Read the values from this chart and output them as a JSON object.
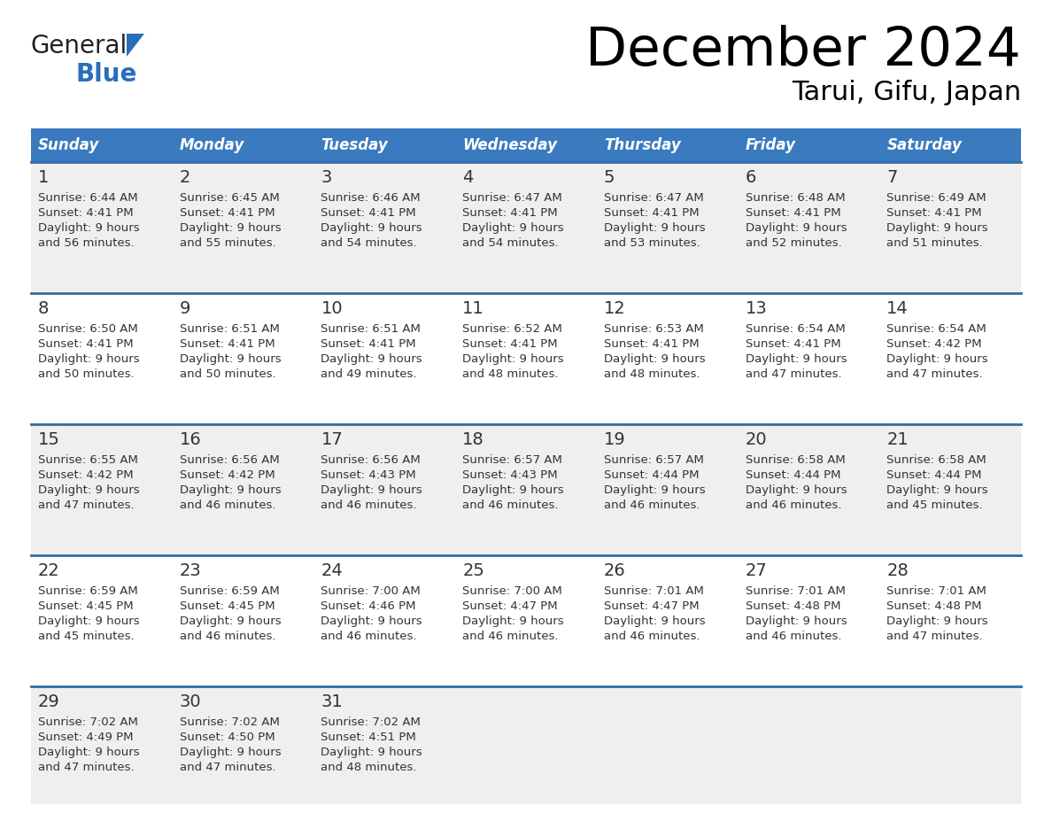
{
  "title": "December 2024",
  "subtitle": "Tarui, Gifu, Japan",
  "header_bg_color": "#3a7abf",
  "header_text_color": "#ffffff",
  "cell_bg_color_odd": "#efefef",
  "cell_bg_color_even": "#ffffff",
  "row_line_color": "#2e6da4",
  "text_color": "#333333",
  "days_of_week": [
    "Sunday",
    "Monday",
    "Tuesday",
    "Wednesday",
    "Thursday",
    "Friday",
    "Saturday"
  ],
  "calendar_data": [
    [
      {
        "day": "1",
        "sunrise": "6:44 AM",
        "sunset": "4:41 PM",
        "daylight_h": "Daylight: 9 hours",
        "daylight_m": "and 56 minutes."
      },
      {
        "day": "2",
        "sunrise": "6:45 AM",
        "sunset": "4:41 PM",
        "daylight_h": "Daylight: 9 hours",
        "daylight_m": "and 55 minutes."
      },
      {
        "day": "3",
        "sunrise": "6:46 AM",
        "sunset": "4:41 PM",
        "daylight_h": "Daylight: 9 hours",
        "daylight_m": "and 54 minutes."
      },
      {
        "day": "4",
        "sunrise": "6:47 AM",
        "sunset": "4:41 PM",
        "daylight_h": "Daylight: 9 hours",
        "daylight_m": "and 54 minutes."
      },
      {
        "day": "5",
        "sunrise": "6:47 AM",
        "sunset": "4:41 PM",
        "daylight_h": "Daylight: 9 hours",
        "daylight_m": "and 53 minutes."
      },
      {
        "day": "6",
        "sunrise": "6:48 AM",
        "sunset": "4:41 PM",
        "daylight_h": "Daylight: 9 hours",
        "daylight_m": "and 52 minutes."
      },
      {
        "day": "7",
        "sunrise": "6:49 AM",
        "sunset": "4:41 PM",
        "daylight_h": "Daylight: 9 hours",
        "daylight_m": "and 51 minutes."
      }
    ],
    [
      {
        "day": "8",
        "sunrise": "6:50 AM",
        "sunset": "4:41 PM",
        "daylight_h": "Daylight: 9 hours",
        "daylight_m": "and 50 minutes."
      },
      {
        "day": "9",
        "sunrise": "6:51 AM",
        "sunset": "4:41 PM",
        "daylight_h": "Daylight: 9 hours",
        "daylight_m": "and 50 minutes."
      },
      {
        "day": "10",
        "sunrise": "6:51 AM",
        "sunset": "4:41 PM",
        "daylight_h": "Daylight: 9 hours",
        "daylight_m": "and 49 minutes."
      },
      {
        "day": "11",
        "sunrise": "6:52 AM",
        "sunset": "4:41 PM",
        "daylight_h": "Daylight: 9 hours",
        "daylight_m": "and 48 minutes."
      },
      {
        "day": "12",
        "sunrise": "6:53 AM",
        "sunset": "4:41 PM",
        "daylight_h": "Daylight: 9 hours",
        "daylight_m": "and 48 minutes."
      },
      {
        "day": "13",
        "sunrise": "6:54 AM",
        "sunset": "4:41 PM",
        "daylight_h": "Daylight: 9 hours",
        "daylight_m": "and 47 minutes."
      },
      {
        "day": "14",
        "sunrise": "6:54 AM",
        "sunset": "4:42 PM",
        "daylight_h": "Daylight: 9 hours",
        "daylight_m": "and 47 minutes."
      }
    ],
    [
      {
        "day": "15",
        "sunrise": "6:55 AM",
        "sunset": "4:42 PM",
        "daylight_h": "Daylight: 9 hours",
        "daylight_m": "and 47 minutes."
      },
      {
        "day": "16",
        "sunrise": "6:56 AM",
        "sunset": "4:42 PM",
        "daylight_h": "Daylight: 9 hours",
        "daylight_m": "and 46 minutes."
      },
      {
        "day": "17",
        "sunrise": "6:56 AM",
        "sunset": "4:43 PM",
        "daylight_h": "Daylight: 9 hours",
        "daylight_m": "and 46 minutes."
      },
      {
        "day": "18",
        "sunrise": "6:57 AM",
        "sunset": "4:43 PM",
        "daylight_h": "Daylight: 9 hours",
        "daylight_m": "and 46 minutes."
      },
      {
        "day": "19",
        "sunrise": "6:57 AM",
        "sunset": "4:44 PM",
        "daylight_h": "Daylight: 9 hours",
        "daylight_m": "and 46 minutes."
      },
      {
        "day": "20",
        "sunrise": "6:58 AM",
        "sunset": "4:44 PM",
        "daylight_h": "Daylight: 9 hours",
        "daylight_m": "and 46 minutes."
      },
      {
        "day": "21",
        "sunrise": "6:58 AM",
        "sunset": "4:44 PM",
        "daylight_h": "Daylight: 9 hours",
        "daylight_m": "and 45 minutes."
      }
    ],
    [
      {
        "day": "22",
        "sunrise": "6:59 AM",
        "sunset": "4:45 PM",
        "daylight_h": "Daylight: 9 hours",
        "daylight_m": "and 45 minutes."
      },
      {
        "day": "23",
        "sunrise": "6:59 AM",
        "sunset": "4:45 PM",
        "daylight_h": "Daylight: 9 hours",
        "daylight_m": "and 46 minutes."
      },
      {
        "day": "24",
        "sunrise": "7:00 AM",
        "sunset": "4:46 PM",
        "daylight_h": "Daylight: 9 hours",
        "daylight_m": "and 46 minutes."
      },
      {
        "day": "25",
        "sunrise": "7:00 AM",
        "sunset": "4:47 PM",
        "daylight_h": "Daylight: 9 hours",
        "daylight_m": "and 46 minutes."
      },
      {
        "day": "26",
        "sunrise": "7:01 AM",
        "sunset": "4:47 PM",
        "daylight_h": "Daylight: 9 hours",
        "daylight_m": "and 46 minutes."
      },
      {
        "day": "27",
        "sunrise": "7:01 AM",
        "sunset": "4:48 PM",
        "daylight_h": "Daylight: 9 hours",
        "daylight_m": "and 46 minutes."
      },
      {
        "day": "28",
        "sunrise": "7:01 AM",
        "sunset": "4:48 PM",
        "daylight_h": "Daylight: 9 hours",
        "daylight_m": "and 47 minutes."
      }
    ],
    [
      {
        "day": "29",
        "sunrise": "7:02 AM",
        "sunset": "4:49 PM",
        "daylight_h": "Daylight: 9 hours",
        "daylight_m": "and 47 minutes."
      },
      {
        "day": "30",
        "sunrise": "7:02 AM",
        "sunset": "4:50 PM",
        "daylight_h": "Daylight: 9 hours",
        "daylight_m": "and 47 minutes."
      },
      {
        "day": "31",
        "sunrise": "7:02 AM",
        "sunset": "4:51 PM",
        "daylight_h": "Daylight: 9 hours",
        "daylight_m": "and 48 minutes."
      },
      null,
      null,
      null,
      null
    ]
  ],
  "logo_text_general": "General",
  "logo_text_blue": "Blue",
  "logo_blue_color": "#2a6ebb",
  "logo_general_color": "#222222"
}
